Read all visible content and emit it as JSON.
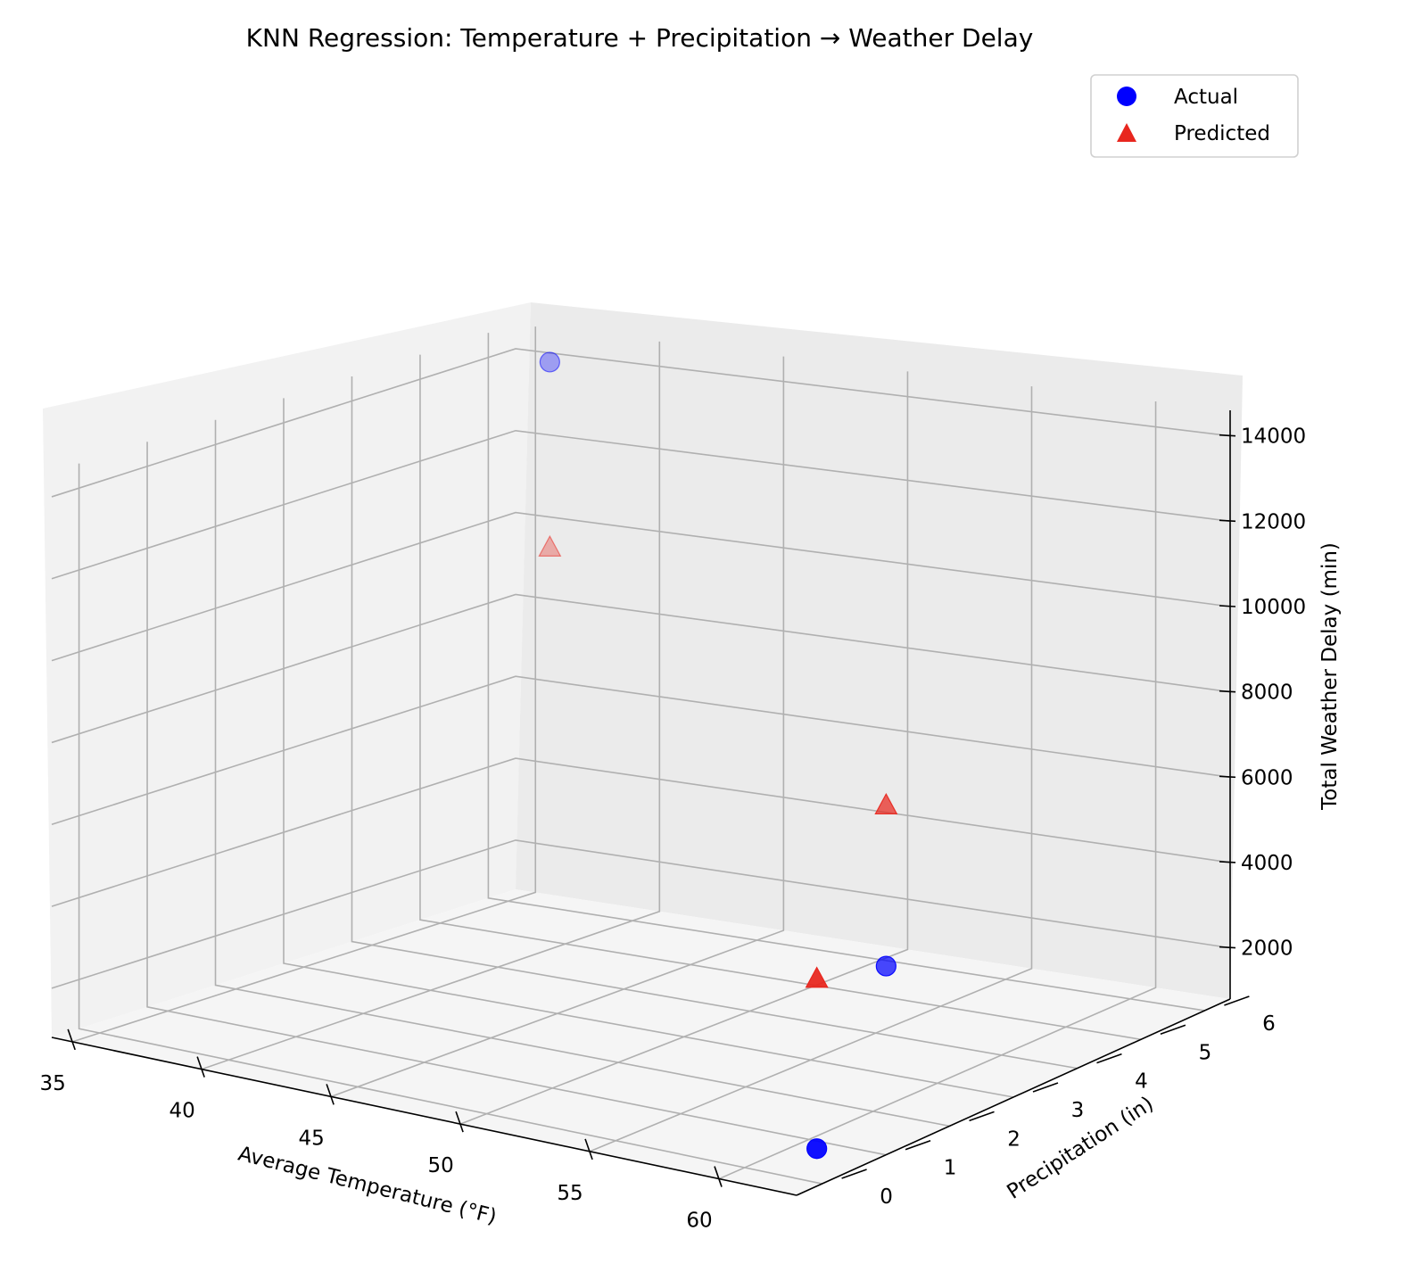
{
  "chart_data": {
    "type": "scatter3d",
    "title": "KNN Regression: Temperature + Precipitation → Weather Delay",
    "xlabel": "Average Temperature (°F)",
    "ylabel": "Precipitation (in)",
    "zlabel": "Total Weather Delay (min)",
    "x_ticks": [
      "35",
      "40",
      "45",
      "50",
      "55",
      "60"
    ],
    "y_ticks": [
      "0",
      "1",
      "2",
      "3",
      "4",
      "5",
      "6"
    ],
    "z_ticks": [
      "2000",
      "4000",
      "6000",
      "8000",
      "10000",
      "12000",
      "14000"
    ],
    "grid": true,
    "legend_position": "top-right",
    "series": [
      {
        "name": "Actual",
        "marker": "circle",
        "color": "#0000ff",
        "points": [
          {
            "x": 62.3,
            "y": 0.2,
            "z": 1400
          },
          {
            "x": 59.5,
            "y": 2.4,
            "z": 3900
          },
          {
            "x": 36.4,
            "y": 6.1,
            "z": 14000
          }
        ]
      },
      {
        "name": "Predicted",
        "marker": "triangle",
        "color": "#e8261e",
        "points": [
          {
            "x": 62.3,
            "y": 0.2,
            "z": 5400
          },
          {
            "x": 59.5,
            "y": 2.4,
            "z": 7700
          },
          {
            "x": 36.4,
            "y": 6.1,
            "z": 9500
          }
        ]
      }
    ]
  }
}
